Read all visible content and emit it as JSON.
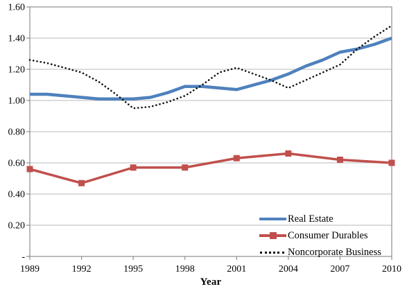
{
  "chart_data": {
    "type": "line",
    "title": "",
    "xlabel": "Year",
    "ylabel": "",
    "xlim": [
      1989,
      2010
    ],
    "ylim": [
      0,
      1.6
    ],
    "x_ticks": [
      1989,
      1992,
      1995,
      1998,
      2001,
      2004,
      2007,
      2010
    ],
    "y_tick_labels": [
      "1.60",
      "1.40",
      "1.20",
      "1.00",
      "0.80",
      "0.60",
      "0.40",
      "0.20",
      "-"
    ],
    "grid": true,
    "legend_position": "inside bottom-right",
    "series": [
      {
        "name": "Real Estate",
        "color": "#4F81BD",
        "line_style": "solid",
        "line_width": 4.5,
        "marker": "none",
        "x": [
          1989,
          1990,
          1991,
          1992,
          1993,
          1994,
          1995,
          1996,
          1997,
          1998,
          1999,
          2000,
          2001,
          2002,
          2003,
          2004,
          2005,
          2006,
          2007,
          2008,
          2009,
          2010
        ],
        "values": [
          1.04,
          1.04,
          1.03,
          1.02,
          1.01,
          1.01,
          1.01,
          1.02,
          1.05,
          1.09,
          1.09,
          1.08,
          1.07,
          1.1,
          1.13,
          1.17,
          1.22,
          1.26,
          1.31,
          1.33,
          1.36,
          1.4
        ]
      },
      {
        "name": "Consumer Durables",
        "color": "#C0504D",
        "line_style": "solid",
        "line_width": 3.5,
        "marker": "square",
        "marker_size": 9,
        "x": [
          1989,
          1992,
          1995,
          1998,
          2001,
          2004,
          2007,
          2010
        ],
        "values": [
          0.56,
          0.47,
          0.57,
          0.57,
          0.63,
          0.66,
          0.62,
          0.6
        ]
      },
      {
        "name": "Noncorporate Business",
        "color": "#111111",
        "line_style": "dotted",
        "line_width": 2.6,
        "marker": "none",
        "x": [
          1989,
          1990,
          1991,
          1992,
          1993,
          1994,
          1995,
          1996,
          1997,
          1998,
          1999,
          2000,
          2001,
          2002,
          2003,
          2004,
          2005,
          2006,
          2007,
          2008,
          2009,
          2010
        ],
        "values": [
          1.26,
          1.24,
          1.21,
          1.18,
          1.12,
          1.04,
          0.95,
          0.96,
          0.99,
          1.03,
          1.1,
          1.18,
          1.21,
          1.17,
          1.13,
          1.08,
          1.13,
          1.18,
          1.23,
          1.33,
          1.41,
          1.48
        ]
      }
    ],
    "colors": {
      "grid": "#C6C6C6",
      "axis": "#8E8E8E",
      "text": "#000000",
      "background": "#FFFFFF"
    }
  }
}
